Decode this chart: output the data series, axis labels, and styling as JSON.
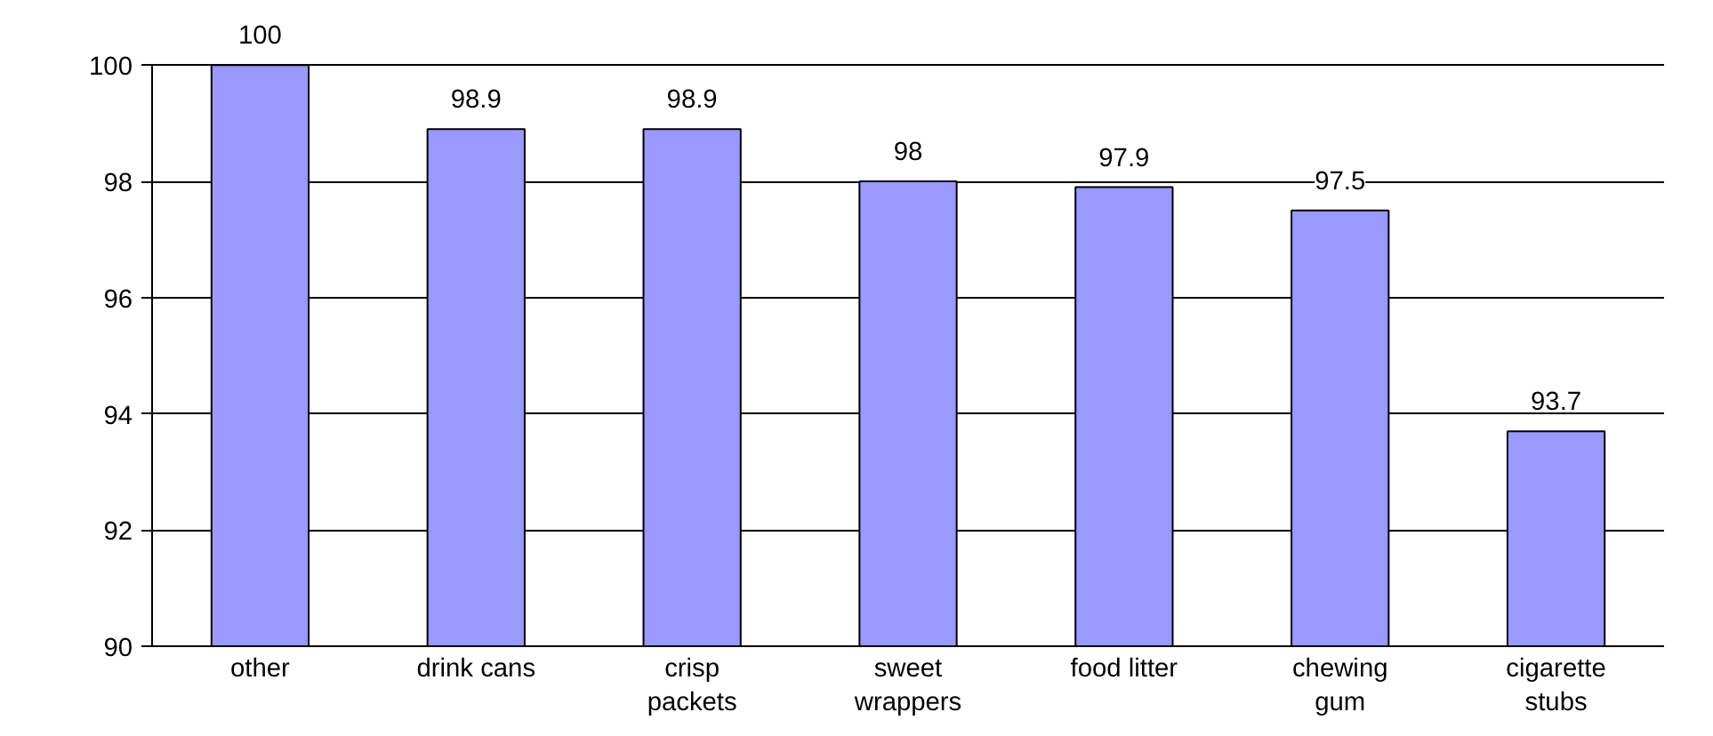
{
  "chart_data": {
    "type": "bar",
    "categories": [
      "other",
      "drink cans",
      "crisp\npackets",
      "sweet\nwrappers",
      "food litter",
      "chewing\ngum",
      "cigarette\nstubs"
    ],
    "values": [
      100,
      98.9,
      98.9,
      98,
      97.9,
      97.5,
      93.7
    ],
    "color": "#9999ff",
    "ylim": [
      90,
      100
    ],
    "yticks": [
      90,
      92,
      94,
      96,
      98,
      100
    ],
    "grid": "y",
    "data_labels": true
  }
}
